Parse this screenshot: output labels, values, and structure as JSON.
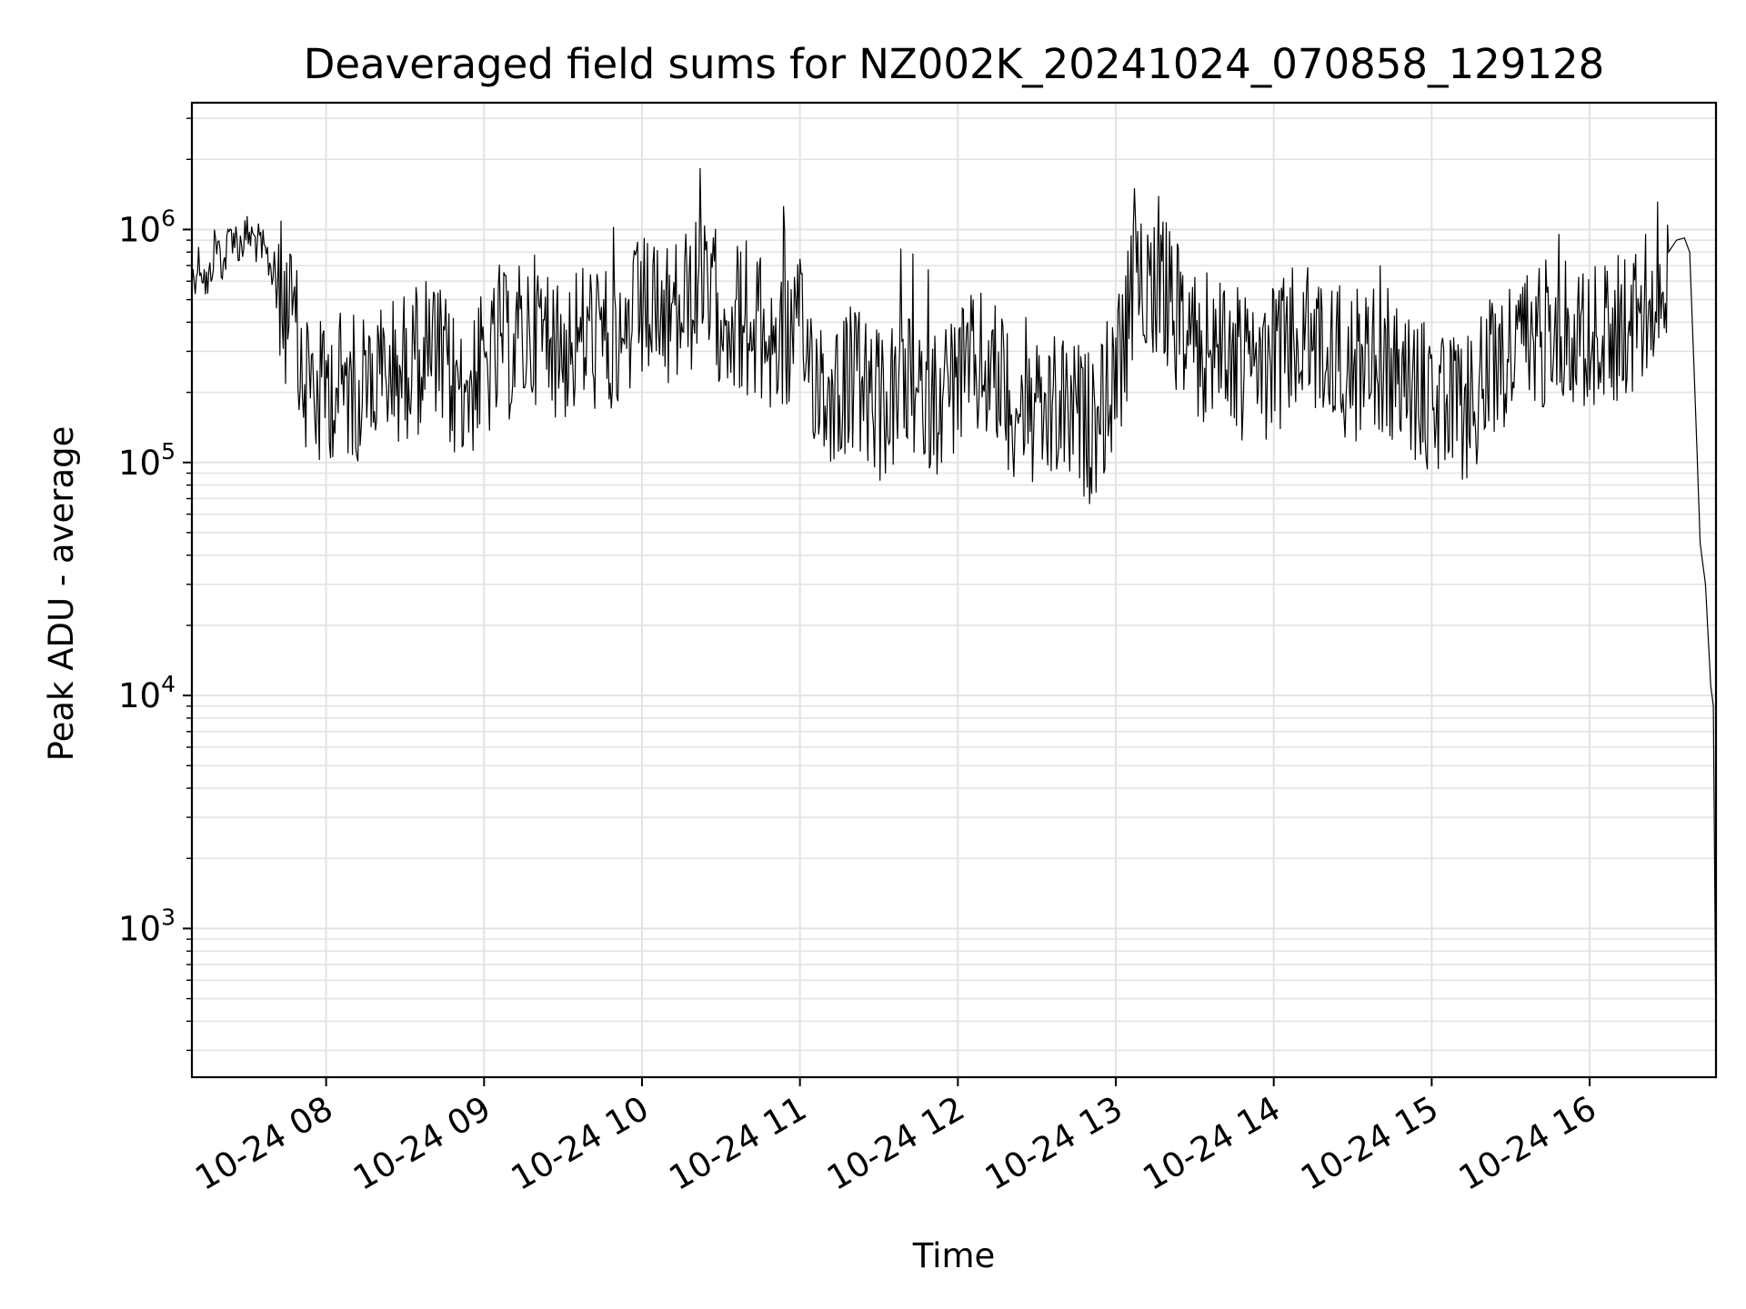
{
  "chart_data": {
    "type": "line",
    "title": "Deaveraged field sums for NZ002K_20241024_070858_129128",
    "xlabel": "Time",
    "ylabel": "Peak ADU - average",
    "y_scale": "log",
    "xlim": [
      "2024-10-24 07:09",
      "2024-10-24 16:48"
    ],
    "ylim": [
      230,
      3500000
    ],
    "grid": true,
    "line_color": "#000000",
    "x_ticks": [
      {
        "x": "2024-10-24 08:00",
        "label": "10-24 08"
      },
      {
        "x": "2024-10-24 09:00",
        "label": "10-24 09"
      },
      {
        "x": "2024-10-24 10:00",
        "label": "10-24 10"
      },
      {
        "x": "2024-10-24 11:00",
        "label": "10-24 11"
      },
      {
        "x": "2024-10-24 12:00",
        "label": "10-24 12"
      },
      {
        "x": "2024-10-24 13:00",
        "label": "10-24 13"
      },
      {
        "x": "2024-10-24 14:00",
        "label": "10-24 14"
      },
      {
        "x": "2024-10-24 15:00",
        "label": "10-24 15"
      },
      {
        "x": "2024-10-24 16:00",
        "label": "10-24 16"
      }
    ],
    "y_ticks": [
      {
        "value": 1000,
        "base": "10",
        "exp": "3"
      },
      {
        "value": 10000,
        "base": "10",
        "exp": "4"
      },
      {
        "value": 100000,
        "base": "10",
        "exp": "5"
      },
      {
        "value": 1000000,
        "base": "10",
        "exp": "6"
      }
    ],
    "series": [
      {
        "x": [
          "2024-10-24 07:09",
          "2024-10-24 07:12",
          "2024-10-24 07:15",
          "2024-10-24 07:18",
          "2024-10-24 07:21",
          "2024-10-24 07:24",
          "2024-10-24 07:27",
          "2024-10-24 07:30",
          "2024-10-24 07:33",
          "2024-10-24 07:36",
          "2024-10-24 07:39",
          "2024-10-24 07:42",
          "2024-10-24 07:45",
          "2024-10-24 07:48",
          "2024-10-24 07:51",
          "2024-10-24 07:54",
          "2024-10-24 07:57",
          "2024-10-24 08:00",
          "2024-10-24 08:10",
          "2024-10-24 08:20",
          "2024-10-24 08:30",
          "2024-10-24 08:40",
          "2024-10-24 08:50",
          "2024-10-24 09:00",
          "2024-10-24 09:10",
          "2024-10-24 09:20",
          "2024-10-24 09:30",
          "2024-10-24 09:40",
          "2024-10-24 09:50",
          "2024-10-24 10:00",
          "2024-10-24 10:10",
          "2024-10-24 10:20",
          "2024-10-24 10:30",
          "2024-10-24 10:40",
          "2024-10-24 10:50",
          "2024-10-24 11:00",
          "2024-10-24 11:10",
          "2024-10-24 11:20",
          "2024-10-24 11:30",
          "2024-10-24 11:40",
          "2024-10-24 11:50",
          "2024-10-24 12:00",
          "2024-10-24 12:10",
          "2024-10-24 12:20",
          "2024-10-24 12:30",
          "2024-10-24 12:40",
          "2024-10-24 12:50",
          "2024-10-24 13:00",
          "2024-10-24 13:10",
          "2024-10-24 13:20",
          "2024-10-24 13:30",
          "2024-10-24 13:40",
          "2024-10-24 13:50",
          "2024-10-24 14:00",
          "2024-10-24 14:10",
          "2024-10-24 14:20",
          "2024-10-24 14:30",
          "2024-10-24 14:40",
          "2024-10-24 14:50",
          "2024-10-24 15:00",
          "2024-10-24 15:10",
          "2024-10-24 15:20",
          "2024-10-24 15:30",
          "2024-10-24 15:40",
          "2024-10-24 15:50",
          "2024-10-24 16:00",
          "2024-10-24 16:10",
          "2024-10-24 16:20",
          "2024-10-24 16:25",
          "2024-10-24 16:30",
          "2024-10-24 16:33",
          "2024-10-24 16:36",
          "2024-10-24 16:38",
          "2024-10-24 16:40",
          "2024-10-24 16:42",
          "2024-10-24 16:44",
          "2024-10-24 16:46",
          "2024-10-24 16:47",
          "2024-10-24 16:48"
        ],
        "y": [
          600000,
          750000,
          550000,
          900000,
          700000,
          1000000,
          850000,
          950000,
          900000,
          800000,
          700000,
          550000,
          450000,
          380000,
          200000,
          250000,
          180000,
          220000,
          210000,
          230000,
          260000,
          300000,
          200000,
          250000,
          320000,
          380000,
          310000,
          360000,
          300000,
          450000,
          400000,
          520000,
          470000,
          400000,
          320000,
          350000,
          200000,
          230000,
          170000,
          200000,
          180000,
          230000,
          260000,
          190000,
          150000,
          170000,
          140000,
          230000,
          700000,
          500000,
          300000,
          330000,
          240000,
          280000,
          340000,
          300000,
          260000,
          290000,
          220000,
          180000,
          160000,
          220000,
          300000,
          350000,
          400000,
          330000,
          380000,
          420000,
          600000,
          800000,
          900000,
          920000,
          800000,
          200000,
          45000,
          30000,
          11000,
          9000,
          300
        ]
      }
    ]
  }
}
